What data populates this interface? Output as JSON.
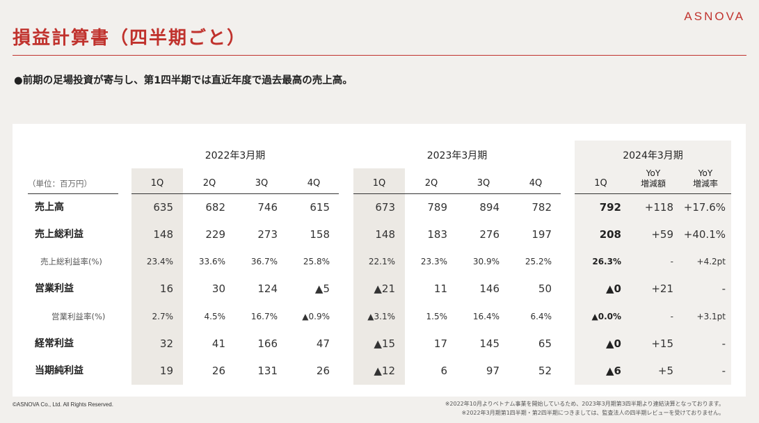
{
  "logo": "ASNOVA",
  "title": "損益計算書（四半期ごと）",
  "bullet": "●前期の足場投資が寄与し、第1四半期では直近年度で過去最高の売上高。",
  "table": {
    "unit": "（単位：百万円）",
    "years": [
      "2022年3月期",
      "2023年3月期",
      "2024年3月期"
    ],
    "quarters": [
      "1Q",
      "2Q",
      "3Q",
      "4Q"
    ],
    "q2024": "1Q",
    "yoy_amount": [
      "YoY",
      "増減額"
    ],
    "yoy_rate": [
      "YoY",
      "増減率"
    ],
    "rows": [
      {
        "label": "売上高",
        "sub": false,
        "y2022": [
          "635",
          "682",
          "746",
          "615"
        ],
        "y2023": [
          "673",
          "789",
          "894",
          "782"
        ],
        "y2024": "792",
        "yoy_amount": "+118",
        "yoy_rate": "+17.6%"
      },
      {
        "label": "売上総利益",
        "sub": false,
        "y2022": [
          "148",
          "229",
          "273",
          "158"
        ],
        "y2023": [
          "148",
          "183",
          "276",
          "197"
        ],
        "y2024": "208",
        "yoy_amount": "+59",
        "yoy_rate": "+40.1%"
      },
      {
        "label": "売上総利益率(%)",
        "sub": true,
        "y2022": [
          "23.4%",
          "33.6%",
          "36.7%",
          "25.8%"
        ],
        "y2023": [
          "22.1%",
          "23.3%",
          "30.9%",
          "25.2%"
        ],
        "y2024": "26.3%",
        "yoy_amount": "-",
        "yoy_rate": "+4.2pt"
      },
      {
        "label": "営業利益",
        "sub": false,
        "y2022": [
          "16",
          "30",
          "124",
          "▲5"
        ],
        "y2023": [
          "▲21",
          "11",
          "146",
          "50"
        ],
        "y2024": "▲0",
        "yoy_amount": "+21",
        "yoy_rate": "-"
      },
      {
        "label": "営業利益率(%)",
        "sub": true,
        "y2022": [
          "2.7%",
          "4.5%",
          "16.7%",
          "▲0.9%"
        ],
        "y2023": [
          "▲3.1%",
          "1.5%",
          "16.4%",
          "6.4%"
        ],
        "y2024": "▲0.0%",
        "yoy_amount": "-",
        "yoy_rate": "+3.1pt"
      },
      {
        "label": "経常利益",
        "sub": false,
        "y2022": [
          "32",
          "41",
          "166",
          "47"
        ],
        "y2023": [
          "▲15",
          "17",
          "145",
          "65"
        ],
        "y2024": "▲0",
        "yoy_amount": "+15",
        "yoy_rate": "-"
      },
      {
        "label": "当期純利益",
        "sub": false,
        "y2022": [
          "19",
          "26",
          "131",
          "26"
        ],
        "y2023": [
          "▲12",
          "6",
          "97",
          "52"
        ],
        "y2024": "▲6",
        "yoy_amount": "+5",
        "yoy_rate": "-"
      }
    ]
  },
  "copyright": "©ASNOVA Co., Ltd. All Rights Reserved.",
  "notes": [
    "※2022年10月よりベトナム事業を開始しているため、2023年3月期第3四半期より連結決算となっております。",
    "※2022年3月期第1四半期・第2四半期につきましては、監査法人の四半期レビューを受けておりません。"
  ]
}
